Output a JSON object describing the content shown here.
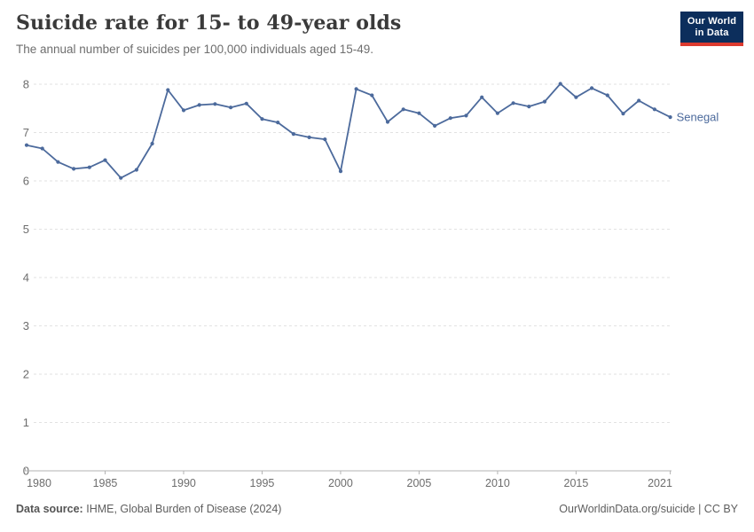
{
  "header": {
    "title": "Suicide rate for 15- to 49-year olds",
    "subtitle": "The annual number of suicides per 100,000 individuals aged 15-49.",
    "logo_line1": "Our World",
    "logo_line2": "in Data"
  },
  "chart_data": {
    "type": "line",
    "title": "Suicide rate for 15- to 49-year olds",
    "subtitle": "The annual number of suicides per 100,000 individuals aged 15-49.",
    "xlabel": "",
    "ylabel": "",
    "xlim": [
      1980,
      2021
    ],
    "ylim": [
      0,
      8
    ],
    "x_ticks": [
      1980,
      1985,
      1990,
      1995,
      2000,
      2005,
      2010,
      2015,
      2021
    ],
    "y_ticks": [
      0,
      1,
      2,
      3,
      4,
      5,
      6,
      7,
      8
    ],
    "grid": "horizontal dashed gridlines on",
    "legend_position": "end-of-line label",
    "series": [
      {
        "name": "Senegal",
        "color": "#4C6A9C",
        "x": [
          1980,
          1981,
          1982,
          1983,
          1984,
          1985,
          1986,
          1987,
          1988,
          1989,
          1990,
          1991,
          1992,
          1993,
          1994,
          1995,
          1996,
          1997,
          1998,
          1999,
          2000,
          2001,
          2002,
          2003,
          2004,
          2005,
          2006,
          2007,
          2008,
          2009,
          2010,
          2011,
          2012,
          2013,
          2014,
          2015,
          2016,
          2017,
          2018,
          2019,
          2020,
          2021
        ],
        "values": [
          6.74,
          6.67,
          6.39,
          6.25,
          6.28,
          6.43,
          6.06,
          6.23,
          6.77,
          7.88,
          7.46,
          7.57,
          7.59,
          7.52,
          7.6,
          7.28,
          7.21,
          6.97,
          6.9,
          6.86,
          6.2,
          7.9,
          7.77,
          7.22,
          7.48,
          7.4,
          7.14,
          7.3,
          7.35,
          7.73,
          7.4,
          7.61,
          7.54,
          7.64,
          8.01,
          7.73,
          7.92,
          7.77,
          7.39,
          7.66,
          7.48,
          7.32
        ]
      }
    ]
  },
  "footer": {
    "source_label": "Data source:",
    "source_value": "IHME, Global Burden of Disease (2024)",
    "link_text": "OurWorldinData.org/suicide | CC BY"
  },
  "colors": {
    "line": "#4C6A9C",
    "gridline": "#e2e2e2",
    "axis_line": "#b3b3b3",
    "tick_text": "#6d6d6d",
    "title_text": "#3a3a3a",
    "subtitle_text": "#6e6e6e",
    "footer_text": "#5e5e5e",
    "logo_bg": "#0C2E5C",
    "logo_stripe": "#DC3A2F"
  }
}
